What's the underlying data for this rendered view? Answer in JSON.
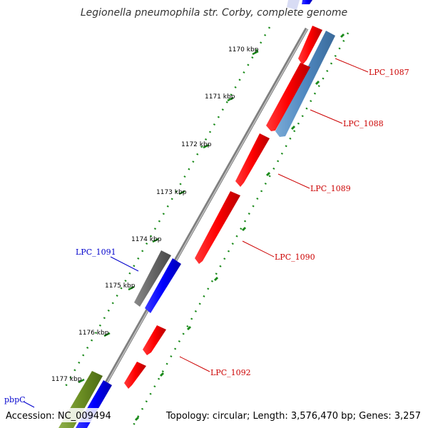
{
  "title": "Legionella pneumophila str. Corby, complete genome",
  "footer": {
    "accession": "Accession: NC_009494",
    "summary": "Topology: circular; Length: 3,576,470 bp; Genes: 3,257"
  },
  "ticks": [
    {
      "label": "1170 kbp"
    },
    {
      "label": "1171 kbp"
    },
    {
      "label": "1172 kbp"
    },
    {
      "label": "1173 kbp"
    },
    {
      "label": "1174 kbp"
    },
    {
      "label": "1175 kbp"
    },
    {
      "label": "1176 kbp"
    },
    {
      "label": "1177 kbp"
    }
  ],
  "gene_labels": [
    {
      "id": "LPC_1087",
      "color": "#cc0000"
    },
    {
      "id": "LPC_1088",
      "color": "#cc0000"
    },
    {
      "id": "LPC_1089",
      "color": "#cc0000"
    },
    {
      "id": "LPC_1090",
      "color": "#cc0000"
    },
    {
      "id": "LPC_1091",
      "color": "#0000cc"
    },
    {
      "id": "LPC_1092",
      "color": "#cc0000"
    },
    {
      "id": "pbpC",
      "color": "#0000cc"
    }
  ],
  "colors": {
    "backbone": "#808080",
    "cds_forward": "#ff0000",
    "cds_reverse": "#0000ff",
    "steelblue_feature": "#4f88c0",
    "grey_feature": "#666666",
    "olive_feature": "#6b8e23",
    "tick_dots": "#1a8a1a"
  }
}
